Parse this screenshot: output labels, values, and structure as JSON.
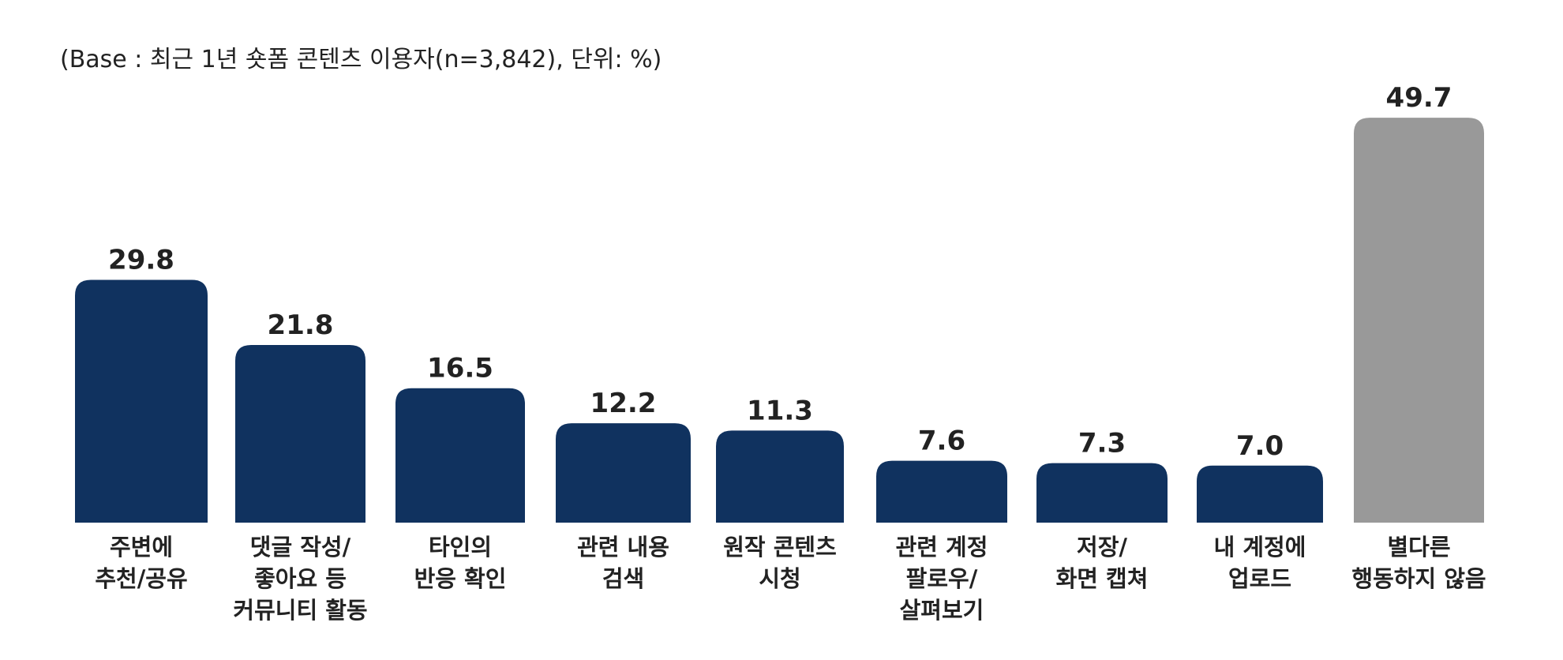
{
  "note": "(Base : 최근 1년 숏폼 콘텐츠 이용자(n=3,842), 단위:  %)",
  "colors": {
    "primary": "#10325f",
    "none": "#999999",
    "text": "#222222"
  },
  "chart_data": {
    "type": "bar",
    "categories": [
      [
        "주변에",
        "추천/공유"
      ],
      [
        "댓글 작성/",
        "좋아요 등",
        "커뮤니티 활동"
      ],
      [
        "타인의",
        "반응 확인"
      ],
      [
        "관련 내용",
        "검색"
      ],
      [
        "원작 콘텐츠",
        "시청"
      ],
      [
        "관련 계정",
        "팔로우/",
        "살펴보기"
      ],
      [
        "저장/",
        "화면 캡쳐"
      ],
      [
        "내 계정에",
        "업로드"
      ],
      [
        "별다른",
        "행동하지 않음"
      ]
    ],
    "values": [
      29.8,
      21.8,
      16.5,
      12.2,
      11.3,
      7.6,
      7.3,
      7.0,
      49.7
    ],
    "value_labels": [
      "29.8",
      "21.8",
      "16.5",
      "12.2",
      "11.3",
      "7.6",
      "7.3",
      "7.0",
      "49.7"
    ],
    "bar_colors": [
      "#10325f",
      "#10325f",
      "#10325f",
      "#10325f",
      "#10325f",
      "#10325f",
      "#10325f",
      "#10325f",
      "#999999"
    ],
    "ylim": [
      0,
      50
    ],
    "grid": false,
    "legend": "none",
    "title": "",
    "xlabel": "",
    "ylabel": ""
  }
}
